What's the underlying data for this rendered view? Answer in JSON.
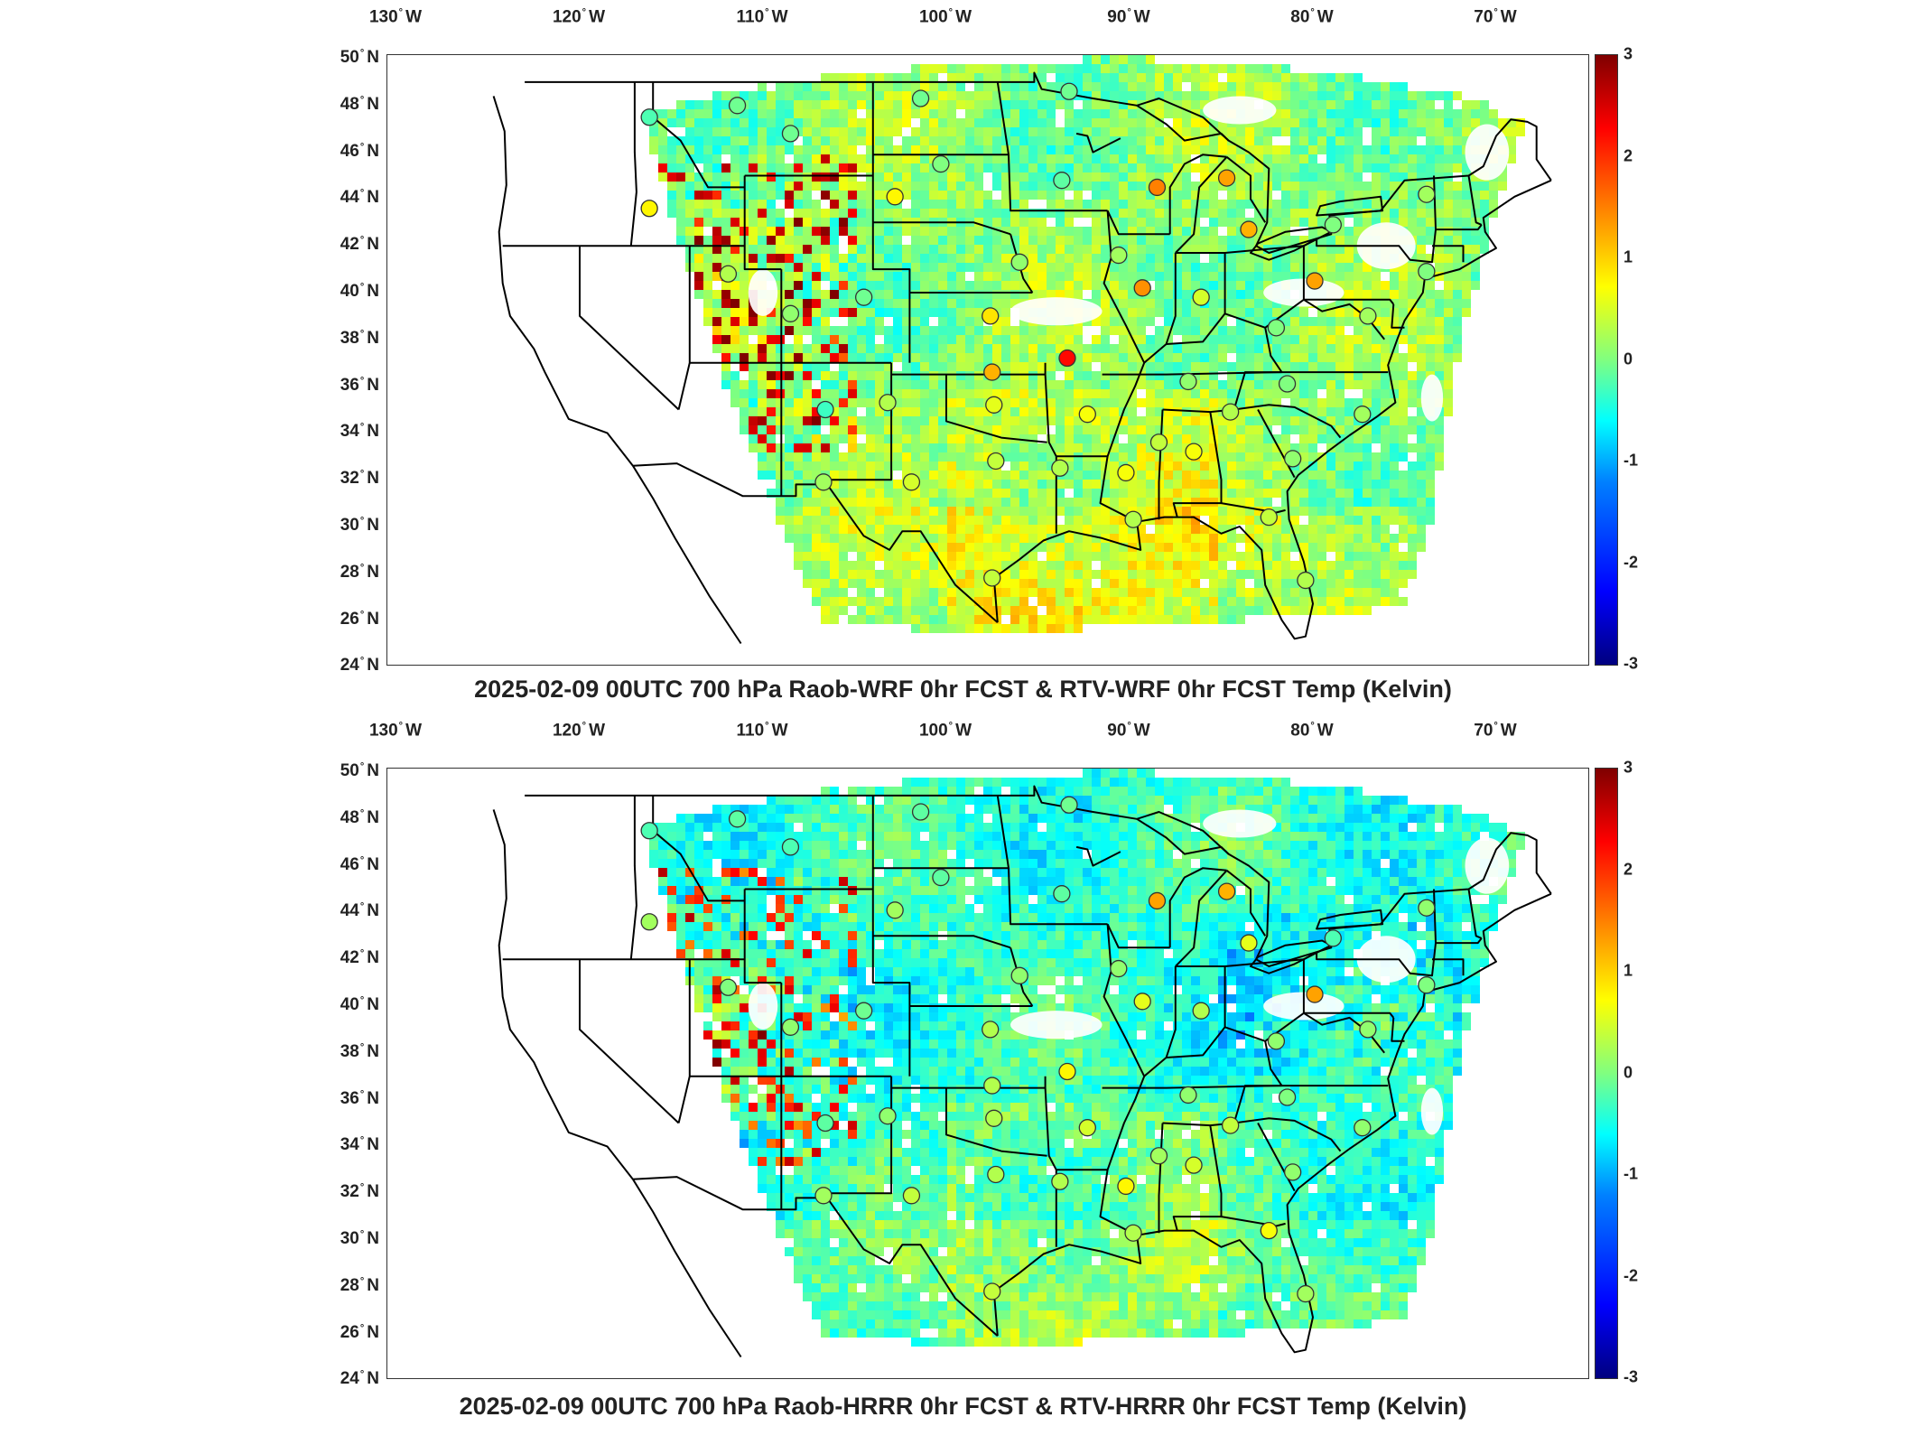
{
  "lon_ticks": [
    "130",
    "120",
    "110",
    "100",
    "90",
    "80",
    "70"
  ],
  "lon_suffix": "W",
  "lat_ticks": [
    "50",
    "48",
    "46",
    "44",
    "42",
    "40",
    "38",
    "36",
    "34",
    "32",
    "30",
    "28",
    "26",
    "24"
  ],
  "lat_suffix": "N",
  "colorbar_ticks": [
    "3",
    "2",
    "1",
    "0",
    "-1",
    "-2",
    "-3"
  ],
  "colormap": "jet",
  "colorbar_range": [
    -3,
    3
  ],
  "panels": [
    {
      "title": "2025-02-09 00UTC 700 hPa Raob-WRF 0hr FCST & RTV-WRF 0hr FCST Temp (Kelvin)",
      "field_tone": "green-cyan",
      "raob_stations": [
        {
          "lon": -116.2,
          "lat": 47.5,
          "value": -0.3
        },
        {
          "lon": -111.4,
          "lat": 48.0,
          "value": -0.1
        },
        {
          "lon": -108.5,
          "lat": 46.8,
          "value": -0.1
        },
        {
          "lon": -102.8,
          "lat": 44.1,
          "value": 0.8
        },
        {
          "lon": -100.3,
          "lat": 45.5,
          "value": 0.0
        },
        {
          "lon": -101.4,
          "lat": 48.3,
          "value": -0.1
        },
        {
          "lon": -93.7,
          "lat": 44.8,
          "value": -0.2
        },
        {
          "lon": -93.3,
          "lat": 48.6,
          "value": -0.1
        },
        {
          "lon": -88.5,
          "lat": 44.5,
          "value": 1.5
        },
        {
          "lon": -84.7,
          "lat": 44.9,
          "value": 1.3
        },
        {
          "lon": -83.5,
          "lat": 42.7,
          "value": 1.2
        },
        {
          "lon": -78.9,
          "lat": 42.9,
          "value": 0.0
        },
        {
          "lon": -73.8,
          "lat": 44.2,
          "value": 0.2
        },
        {
          "lon": -73.8,
          "lat": 40.9,
          "value": 0.0
        },
        {
          "lon": -77.0,
          "lat": 39.0,
          "value": 0.2
        },
        {
          "lon": -79.9,
          "lat": 40.5,
          "value": 1.3
        },
        {
          "lon": -82.0,
          "lat": 38.5,
          "value": 0.0
        },
        {
          "lon": -86.1,
          "lat": 39.8,
          "value": 0.5
        },
        {
          "lon": -89.3,
          "lat": 40.2,
          "value": 1.4
        },
        {
          "lon": -90.6,
          "lat": 41.6,
          "value": 0.2
        },
        {
          "lon": -96.0,
          "lat": 41.3,
          "value": 0.1
        },
        {
          "lon": -97.6,
          "lat": 39.0,
          "value": 0.9
        },
        {
          "lon": -93.4,
          "lat": 37.2,
          "value": 2.2
        },
        {
          "lon": -97.5,
          "lat": 36.6,
          "value": 1.2
        },
        {
          "lon": -97.4,
          "lat": 35.2,
          "value": 0.6
        },
        {
          "lon": -92.3,
          "lat": 34.8,
          "value": 0.7
        },
        {
          "lon": -86.8,
          "lat": 36.2,
          "value": 0.1
        },
        {
          "lon": -84.5,
          "lat": 34.9,
          "value": 0.3
        },
        {
          "lon": -81.4,
          "lat": 36.1,
          "value": 0.0
        },
        {
          "lon": -77.3,
          "lat": 34.8,
          "value": 0.2
        },
        {
          "lon": -81.1,
          "lat": 32.9,
          "value": 0.1
        },
        {
          "lon": -86.5,
          "lat": 33.2,
          "value": 0.7
        },
        {
          "lon": -88.4,
          "lat": 33.6,
          "value": 0.4
        },
        {
          "lon": -90.2,
          "lat": 32.3,
          "value": 0.7
        },
        {
          "lon": -93.8,
          "lat": 32.5,
          "value": 0.3
        },
        {
          "lon": -97.3,
          "lat": 32.8,
          "value": 0.4
        },
        {
          "lon": -101.9,
          "lat": 31.9,
          "value": 0.5
        },
        {
          "lon": -106.7,
          "lat": 31.9,
          "value": 0.2
        },
        {
          "lon": -106.6,
          "lat": 35.0,
          "value": -0.4
        },
        {
          "lon": -103.2,
          "lat": 35.3,
          "value": 0.3
        },
        {
          "lon": -104.5,
          "lat": 39.8,
          "value": -0.1
        },
        {
          "lon": -108.5,
          "lat": 39.1,
          "value": 0.1
        },
        {
          "lon": -111.9,
          "lat": 40.8,
          "value": 0.3
        },
        {
          "lon": -116.2,
          "lat": 43.6,
          "value": 0.8
        },
        {
          "lon": -82.4,
          "lat": 30.4,
          "value": 0.4
        },
        {
          "lon": -89.8,
          "lat": 30.3,
          "value": 0.3
        },
        {
          "lon": -80.4,
          "lat": 27.7,
          "value": 0.3
        },
        {
          "lon": -97.5,
          "lat": 27.8,
          "value": 0.4
        }
      ]
    },
    {
      "title": "2025-02-09 00UTC 700 hPa Raob-HRRR 0hr FCST & RTV-HRRR 0hr FCST Temp (Kelvin)",
      "field_tone": "cyan-blue",
      "raob_stations": [
        {
          "lon": -116.2,
          "lat": 47.5,
          "value": -0.3
        },
        {
          "lon": -111.4,
          "lat": 48.0,
          "value": -0.2
        },
        {
          "lon": -108.5,
          "lat": 46.8,
          "value": -0.3
        },
        {
          "lon": -102.8,
          "lat": 44.1,
          "value": 0.2
        },
        {
          "lon": -100.3,
          "lat": 45.5,
          "value": -0.2
        },
        {
          "lon": -101.4,
          "lat": 48.3,
          "value": -0.2
        },
        {
          "lon": -93.7,
          "lat": 44.8,
          "value": -0.2
        },
        {
          "lon": -93.3,
          "lat": 48.6,
          "value": -0.1
        },
        {
          "lon": -88.5,
          "lat": 44.5,
          "value": 1.3
        },
        {
          "lon": -84.7,
          "lat": 44.9,
          "value": 1.2
        },
        {
          "lon": -83.5,
          "lat": 42.7,
          "value": 0.6
        },
        {
          "lon": -78.9,
          "lat": 42.9,
          "value": -0.3
        },
        {
          "lon": -73.8,
          "lat": 44.2,
          "value": 0.1
        },
        {
          "lon": -73.8,
          "lat": 40.9,
          "value": 0.0
        },
        {
          "lon": -77.0,
          "lat": 39.0,
          "value": 0.1
        },
        {
          "lon": -79.9,
          "lat": 40.5,
          "value": 1.3
        },
        {
          "lon": -82.0,
          "lat": 38.5,
          "value": 0.1
        },
        {
          "lon": -86.1,
          "lat": 39.8,
          "value": 0.3
        },
        {
          "lon": -89.3,
          "lat": 40.2,
          "value": 0.6
        },
        {
          "lon": -90.6,
          "lat": 41.6,
          "value": 0.1
        },
        {
          "lon": -96.0,
          "lat": 41.3,
          "value": 0.1
        },
        {
          "lon": -97.6,
          "lat": 39.0,
          "value": 0.3
        },
        {
          "lon": -93.4,
          "lat": 37.2,
          "value": 0.8
        },
        {
          "lon": -97.5,
          "lat": 36.6,
          "value": 0.3
        },
        {
          "lon": -97.4,
          "lat": 35.2,
          "value": 0.3
        },
        {
          "lon": -92.3,
          "lat": 34.8,
          "value": 0.5
        },
        {
          "lon": -86.8,
          "lat": 36.2,
          "value": 0.1
        },
        {
          "lon": -84.5,
          "lat": 34.9,
          "value": 0.4
        },
        {
          "lon": -81.4,
          "lat": 36.1,
          "value": 0.0
        },
        {
          "lon": -77.3,
          "lat": 34.8,
          "value": 0.1
        },
        {
          "lon": -81.1,
          "lat": 32.9,
          "value": 0.1
        },
        {
          "lon": -86.5,
          "lat": 33.2,
          "value": 0.5
        },
        {
          "lon": -88.4,
          "lat": 33.6,
          "value": 0.2
        },
        {
          "lon": -90.2,
          "lat": 32.3,
          "value": 0.8
        },
        {
          "lon": -93.8,
          "lat": 32.5,
          "value": 0.3
        },
        {
          "lon": -97.3,
          "lat": 32.8,
          "value": 0.3
        },
        {
          "lon": -101.9,
          "lat": 31.9,
          "value": 0.4
        },
        {
          "lon": -106.7,
          "lat": 31.9,
          "value": 0.2
        },
        {
          "lon": -106.6,
          "lat": 35.0,
          "value": -0.2
        },
        {
          "lon": -103.2,
          "lat": 35.3,
          "value": 0.1
        },
        {
          "lon": -104.5,
          "lat": 39.8,
          "value": -0.1
        },
        {
          "lon": -108.5,
          "lat": 39.1,
          "value": 0.1
        },
        {
          "lon": -111.9,
          "lat": 40.8,
          "value": 0.0
        },
        {
          "lon": -116.2,
          "lat": 43.6,
          "value": 0.2
        },
        {
          "lon": -82.4,
          "lat": 30.4,
          "value": 0.7
        },
        {
          "lon": -89.8,
          "lat": 30.3,
          "value": 0.3
        },
        {
          "lon": -80.4,
          "lat": 27.7,
          "value": 0.2
        },
        {
          "lon": -97.5,
          "lat": 27.8,
          "value": 0.4
        }
      ]
    }
  ]
}
